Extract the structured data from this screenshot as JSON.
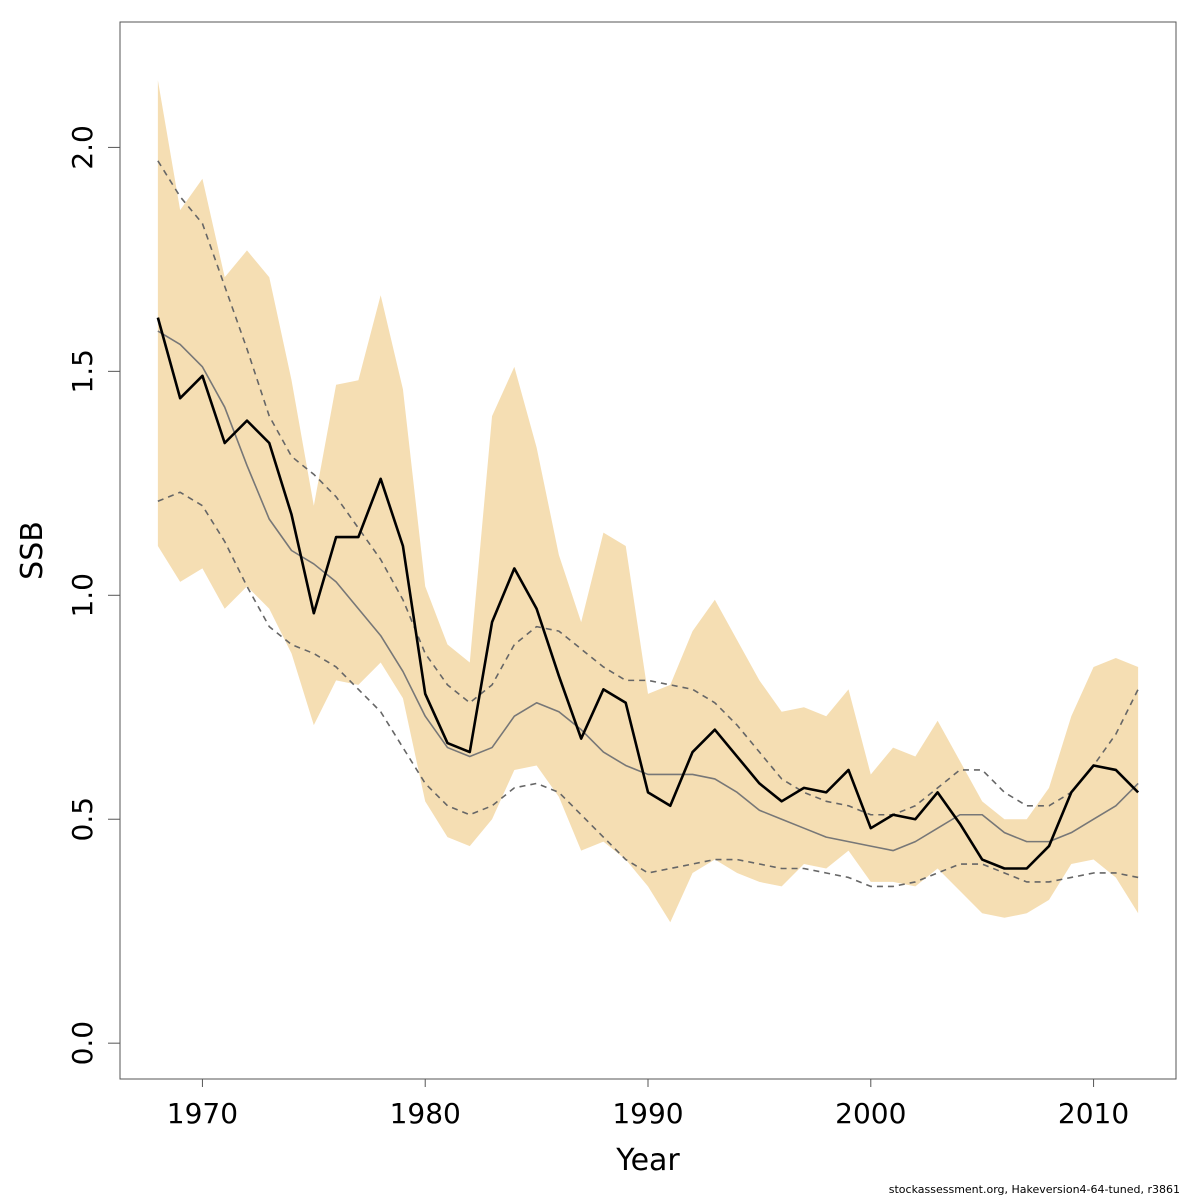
{
  "chart_data": {
    "type": "line",
    "title": "",
    "xlabel": "Year",
    "ylabel": "SSB",
    "xlim": [
      1966.3,
      2013.7
    ],
    "ylim": [
      -0.08,
      2.28
    ],
    "x_ticks": [
      1970,
      1980,
      1990,
      2000,
      2010
    ],
    "y_ticks": [
      0.0,
      0.5,
      1.0,
      1.5,
      2.0
    ],
    "x_tick_labels": [
      "1970",
      "1980",
      "1990",
      "2000",
      "2010"
    ],
    "y_tick_labels": [
      "0.0",
      "0.5",
      "1.0",
      "1.5",
      "2.0"
    ],
    "years": [
      1968,
      1969,
      1970,
      1971,
      1972,
      1973,
      1974,
      1975,
      1976,
      1977,
      1978,
      1979,
      1980,
      1981,
      1982,
      1983,
      1984,
      1985,
      1986,
      1987,
      1988,
      1989,
      1990,
      1991,
      1992,
      1993,
      1994,
      1995,
      1996,
      1997,
      1998,
      1999,
      2000,
      2001,
      2002,
      2003,
      2004,
      2005,
      2006,
      2007,
      2008,
      2009,
      2010,
      2011,
      2012
    ],
    "band_upper": [
      2.15,
      1.86,
      1.93,
      1.71,
      1.77,
      1.71,
      1.48,
      1.2,
      1.47,
      1.48,
      1.67,
      1.46,
      1.02,
      0.89,
      0.85,
      1.4,
      1.51,
      1.33,
      1.09,
      0.94,
      1.14,
      1.11,
      0.78,
      0.8,
      0.92,
      0.99,
      0.9,
      0.81,
      0.74,
      0.75,
      0.73,
      0.79,
      0.6,
      0.66,
      0.64,
      0.72,
      0.63,
      0.54,
      0.5,
      0.5,
      0.57,
      0.73,
      0.84,
      0.86,
      0.84
    ],
    "band_lower": [
      1.11,
      1.03,
      1.06,
      0.97,
      1.02,
      0.97,
      0.87,
      0.71,
      0.81,
      0.8,
      0.85,
      0.77,
      0.54,
      0.46,
      0.44,
      0.5,
      0.61,
      0.62,
      0.55,
      0.43,
      0.45,
      0.41,
      0.35,
      0.27,
      0.38,
      0.41,
      0.38,
      0.36,
      0.35,
      0.4,
      0.39,
      0.43,
      0.36,
      0.36,
      0.35,
      0.39,
      0.34,
      0.29,
      0.28,
      0.29,
      0.32,
      0.4,
      0.41,
      0.37,
      0.29
    ],
    "series": [
      {
        "name": "",
        "style": "solid-black",
        "color": "#000000",
        "values": [
          1.62,
          1.44,
          1.49,
          1.34,
          1.39,
          1.34,
          1.18,
          0.96,
          1.13,
          1.13,
          1.26,
          1.11,
          0.78,
          0.67,
          0.65,
          0.94,
          1.06,
          0.97,
          0.82,
          0.68,
          0.79,
          0.76,
          0.56,
          0.53,
          0.65,
          0.7,
          0.64,
          0.58,
          0.54,
          0.57,
          0.56,
          0.61,
          0.48,
          0.51,
          0.5,
          0.56,
          0.49,
          0.41,
          0.39,
          0.39,
          0.44,
          0.56,
          0.62,
          0.61,
          0.56
        ]
      },
      {
        "name": "",
        "style": "solid-gray",
        "color": "#777777",
        "values": [
          1.59,
          1.56,
          1.51,
          1.42,
          1.29,
          1.17,
          1.1,
          1.07,
          1.03,
          0.97,
          0.91,
          0.83,
          0.73,
          0.66,
          0.64,
          0.66,
          0.73,
          0.76,
          0.74,
          0.7,
          0.65,
          0.62,
          0.6,
          0.6,
          0.6,
          0.59,
          0.56,
          0.52,
          0.5,
          0.48,
          0.46,
          0.45,
          0.44,
          0.43,
          0.45,
          0.48,
          0.51,
          0.51,
          0.47,
          0.45,
          0.45,
          0.47,
          0.5,
          0.53,
          0.58
        ]
      },
      {
        "name": "",
        "style": "dashed-upper",
        "color": "#666666",
        "values": [
          1.97,
          1.89,
          1.83,
          1.69,
          1.55,
          1.4,
          1.31,
          1.27,
          1.22,
          1.15,
          1.08,
          0.99,
          0.87,
          0.8,
          0.76,
          0.8,
          0.89,
          0.93,
          0.92,
          0.88,
          0.84,
          0.81,
          0.81,
          0.8,
          0.79,
          0.76,
          0.71,
          0.65,
          0.59,
          0.56,
          0.54,
          0.53,
          0.51,
          0.51,
          0.53,
          0.57,
          0.61,
          0.61,
          0.56,
          0.53,
          0.53,
          0.56,
          0.62,
          0.69,
          0.79
        ]
      },
      {
        "name": "",
        "style": "dashed-lower",
        "color": "#666666",
        "values": [
          1.21,
          1.23,
          1.2,
          1.12,
          1.02,
          0.93,
          0.89,
          0.87,
          0.84,
          0.79,
          0.74,
          0.66,
          0.58,
          0.53,
          0.51,
          0.53,
          0.57,
          0.58,
          0.56,
          0.51,
          0.46,
          0.41,
          0.38,
          0.39,
          0.4,
          0.41,
          0.41,
          0.4,
          0.39,
          0.39,
          0.38,
          0.37,
          0.35,
          0.35,
          0.36,
          0.38,
          0.4,
          0.4,
          0.38,
          0.36,
          0.36,
          0.37,
          0.38,
          0.38,
          0.37
        ]
      }
    ],
    "band_color": "#F5DEB3",
    "grid": false,
    "legend": "none"
  },
  "footer_text": "stockassessment.org, Hakeversion4-64-tuned, r3861"
}
